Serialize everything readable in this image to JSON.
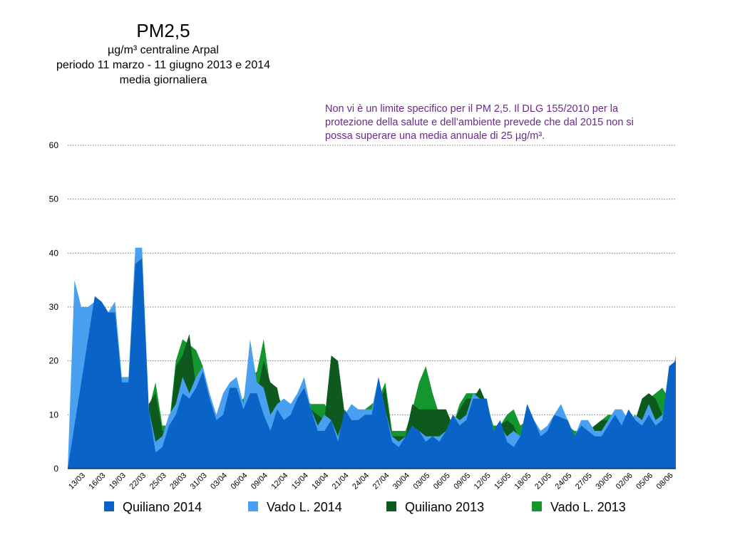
{
  "chart_data": {
    "type": "area",
    "title": "PM2,5",
    "subtitle": [
      "µg/m³ centraline Arpal",
      "periodo 11 marzo - 11 giugno 2013 e 2014",
      "media giornaliera"
    ],
    "annotation": [
      "Non vi è un limite specifico per il PM 2,5. Il DLG 155/2010 per la",
      "protezione della salute e dell’ambiente prevede che dal 2015 non si",
      "possa superare una media annuale di 25 µg/m³."
    ],
    "categories": [
      null,
      null,
      "13/03",
      null,
      null,
      "16/03",
      null,
      null,
      "19/03",
      null,
      null,
      "22/03",
      null,
      null,
      "25/03",
      null,
      null,
      "28/03",
      null,
      null,
      "31/03",
      null,
      null,
      "03/04",
      null,
      null,
      "06/04",
      null,
      null,
      "09/04",
      null,
      null,
      "12/04",
      null,
      null,
      "15/04",
      null,
      null,
      "18/04",
      null,
      null,
      "21/04",
      null,
      null,
      "24/04",
      null,
      null,
      "27/04",
      null,
      null,
      "30/04",
      null,
      null,
      "03/05",
      null,
      null,
      "06/05",
      null,
      null,
      "09/05",
      null,
      null,
      "12/05",
      null,
      null,
      "15/05",
      null,
      null,
      "18/05",
      null,
      null,
      "21/05",
      null,
      null,
      "24/05",
      null,
      null,
      "27/05",
      null,
      null,
      "30/05",
      null,
      null,
      "02/06",
      null,
      null,
      "05/06",
      null,
      null,
      "08/06",
      null
    ],
    "series": [
      {
        "name": "Quiliano 2014",
        "color": "#0a64c8",
        "values": [
          0,
          8,
          16,
          24,
          32,
          31,
          29,
          29,
          16,
          16,
          38,
          39,
          11,
          3,
          4,
          8,
          10,
          14,
          13,
          15,
          18,
          13,
          9,
          10,
          15,
          15,
          11,
          14,
          14,
          10,
          7,
          11,
          9,
          10,
          13,
          15,
          11,
          7,
          7,
          9,
          5,
          11,
          9,
          9,
          10,
          10,
          17,
          11,
          5,
          4,
          6,
          8,
          7,
          5,
          6,
          5,
          7,
          10,
          8,
          9,
          13,
          13,
          13,
          7,
          9,
          5,
          4,
          6,
          12,
          9,
          6,
          7,
          10,
          9.5,
          9,
          6,
          8,
          7,
          6,
          6,
          8,
          10,
          8,
          11,
          9,
          8,
          10,
          8,
          9,
          19,
          20
        ]
      },
      {
        "name": "Vado L. 2014",
        "color": "#4aa0f0",
        "values": [
          0,
          35,
          30,
          30,
          31,
          31,
          29,
          31,
          17,
          17,
          41,
          41,
          11,
          5,
          6,
          10,
          12,
          17,
          14,
          17,
          19,
          14,
          10,
          14,
          16,
          17,
          12,
          24,
          16,
          15,
          10,
          12,
          13,
          12,
          14,
          17,
          11,
          8,
          10,
          9,
          6,
          10,
          12,
          11,
          11,
          11,
          17,
          11,
          6,
          5,
          6,
          7,
          7,
          6,
          6,
          6,
          7,
          10,
          9,
          10,
          14,
          13,
          13,
          7,
          8,
          6,
          7,
          6,
          12,
          9,
          7,
          8,
          10,
          12,
          9,
          6,
          9,
          9,
          7,
          7,
          9,
          11,
          11,
          9,
          10,
          9,
          12,
          9,
          10,
          15,
          21
        ]
      },
      {
        "name": "Quiliano 2013",
        "color": "#0e5a1e",
        "values": [
          null,
          null,
          null,
          null,
          null,
          null,
          null,
          null,
          null,
          null,
          null,
          null,
          12,
          14,
          7,
          7,
          19,
          21,
          25,
          15,
          18,
          12,
          9,
          10,
          12,
          12,
          11,
          12,
          14,
          20,
          16,
          15,
          9,
          10,
          12,
          14,
          11,
          10,
          9,
          21,
          20,
          10,
          9,
          9,
          10,
          11,
          12,
          15,
          6,
          6,
          6,
          12,
          11,
          11,
          11,
          11,
          11,
          8,
          11,
          13,
          13,
          15,
          12,
          7,
          8,
          9,
          8,
          5,
          8,
          8,
          7,
          7,
          9,
          9,
          9,
          6,
          7,
          7,
          8,
          9,
          9,
          9,
          9,
          10,
          9,
          13,
          14,
          13,
          10,
          12,
          13
        ]
      },
      {
        "name": "Vado L. 2013",
        "color": "#13962e",
        "values": [
          null,
          null,
          null,
          null,
          null,
          null,
          null,
          null,
          null,
          null,
          null,
          null,
          11,
          16,
          8,
          8,
          20,
          24,
          23,
          22,
          19,
          13,
          10,
          11,
          12,
          12,
          13,
          17,
          18,
          24,
          15,
          14,
          11,
          11,
          13,
          13,
          12,
          12,
          12,
          10,
          19,
          10,
          9,
          10,
          11,
          12,
          13,
          16,
          7,
          7,
          7,
          11,
          16,
          19,
          14,
          10,
          10,
          8,
          12,
          14,
          14,
          14,
          12,
          8,
          8,
          10,
          11,
          8,
          9,
          9,
          7,
          7,
          8,
          8,
          8,
          7,
          7,
          7,
          8,
          9,
          10,
          10,
          9,
          10,
          9,
          11,
          13,
          14,
          15,
          13,
          12
        ]
      }
    ],
    "ylim": [
      0,
      60
    ],
    "yticks": [
      0,
      10,
      20,
      30,
      40,
      50,
      60
    ],
    "grid": true,
    "legend": "bottom"
  }
}
